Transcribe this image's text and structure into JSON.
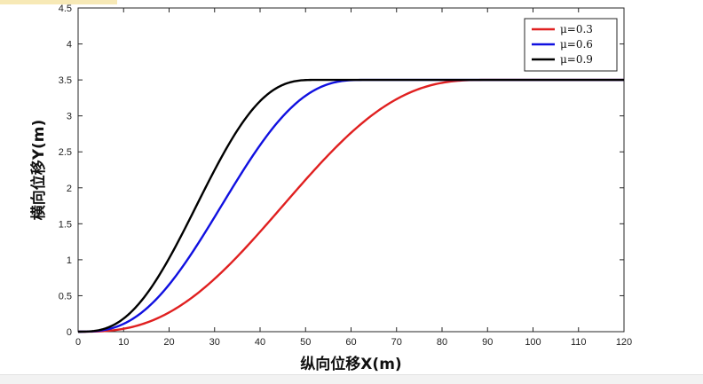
{
  "chart_data": {
    "type": "line",
    "title": "",
    "xlabel": "纵向位移X(m)",
    "ylabel": "横向位移Y(m)",
    "xlim": [
      0,
      120
    ],
    "ylim": [
      0,
      4.5
    ],
    "x_ticks": [
      "0",
      "10",
      "20",
      "30",
      "40",
      "50",
      "60",
      "70",
      "80",
      "90",
      "100",
      "110",
      "120"
    ],
    "y_ticks": [
      "0",
      "0.5",
      "1",
      "1.5",
      "2",
      "2.5",
      "3",
      "3.5",
      "4",
      "4.5"
    ],
    "grid": false,
    "legend_position": "top-right",
    "series": [
      {
        "name": "μ=0.3",
        "color": "#e02020",
        "lane_width": 3.5,
        "x_end": 90
      },
      {
        "name": "μ=0.6",
        "color": "#1010e0",
        "lane_width": 3.5,
        "x_end": 63
      },
      {
        "name": "μ=0.9",
        "color": "#000000",
        "lane_width": 3.5,
        "x_end": 52
      }
    ]
  }
}
